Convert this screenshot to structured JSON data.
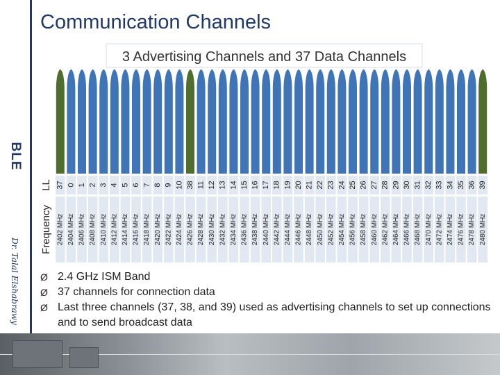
{
  "slide": {
    "title": "Communication Channels",
    "side_label": "BLE",
    "author": "Dr. Talal Elshabrawy"
  },
  "bullets": [
    "2.4 GHz ISM Band",
    "37 channels for connection data",
    "Last three channels (37, 38, and 39) used as advertising channels to set up connections and to send broadcast data"
  ],
  "bullet_marker": "Ø",
  "colors": {
    "title": "#1f3a6a",
    "advertising": "#4f6e2e",
    "data": "#3f75b6",
    "label_bg": "#e2e8f1"
  },
  "chart_data": {
    "type": "bar",
    "title": "3 Advertising Channels and 37 Data Channels",
    "row_labels": {
      "channel": "LL",
      "frequency": "Frequency"
    },
    "channels": [
      "37",
      "0",
      "1",
      "2",
      "3",
      "4",
      "5",
      "6",
      "7",
      "8",
      "9",
      "10",
      "38",
      "11",
      "12",
      "13",
      "14",
      "15",
      "16",
      "17",
      "18",
      "19",
      "20",
      "21",
      "22",
      "23",
      "24",
      "25",
      "26",
      "27",
      "28",
      "29",
      "30",
      "31",
      "32",
      "33",
      "34",
      "35",
      "36",
      "39"
    ],
    "frequencies": [
      "2402 MHz",
      "2404 MHz",
      "2406 MHz",
      "2408 MHz",
      "2410 MHz",
      "2412 MHz",
      "2414 MHz",
      "2416 MHz",
      "2418 MHz",
      "2420 MHz",
      "2422 MHz",
      "2424 MHz",
      "2426 MHz",
      "2428 MHz",
      "2430 MHz",
      "2432 MHz",
      "2434 MHz",
      "2436 MHz",
      "2438 MHz",
      "2440 MHz",
      "2442 MHz",
      "2444 MHz",
      "2446 MHz",
      "2448 MHz",
      "2450 MHz",
      "2452 MHz",
      "2454 MHz",
      "2456 MHz",
      "2458 MHz",
      "2460 MHz",
      "2462 MHz",
      "2464 MHz",
      "2466 MHz",
      "2468 MHz",
      "2470 MHz",
      "2472 MHz",
      "2474 MHz",
      "2476 MHz",
      "2478 MHz",
      "2480 MHz"
    ],
    "advertising_channels": [
      "37",
      "38",
      "39"
    ]
  }
}
